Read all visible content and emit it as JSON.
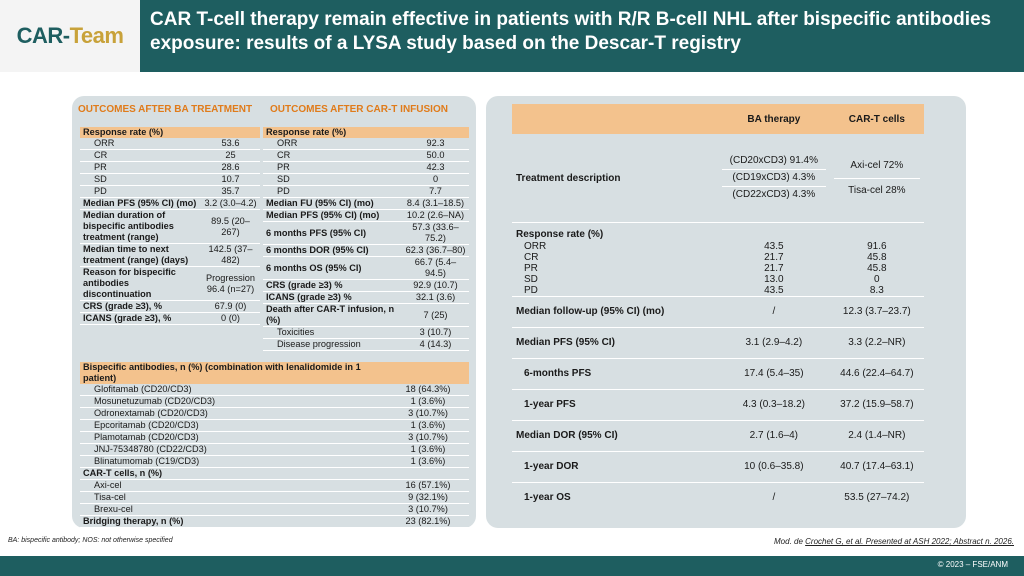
{
  "header": {
    "logo_main": "CAR-",
    "logo_accent": "Team",
    "title": "CAR T-cell therapy remain effective in patients with R/R B-cell NHL after bispecific antibodies exposure: results of a LYSA study based on the Descar-T registry"
  },
  "left": {
    "ba_title": "OUTCOMES AFTER BA TREATMENT",
    "cart_title": "OUTCOMES AFTER CAR-T INFUSION",
    "ba_rows": [
      {
        "label": "Response rate (%)",
        "value": "",
        "type": "header"
      },
      {
        "label": "ORR",
        "value": "53.6",
        "type": "sub"
      },
      {
        "label": "CR",
        "value": "25",
        "type": "sub"
      },
      {
        "label": "PR",
        "value": "28.6",
        "type": "sub"
      },
      {
        "label": "SD",
        "value": "10.7",
        "type": "sub"
      },
      {
        "label": "PD",
        "value": "35.7",
        "type": "sub"
      },
      {
        "label": "Median PFS (95% CI) (mo)",
        "value": "3.2 (3.0–4.2)",
        "type": "bold"
      },
      {
        "label": "Median duration of bispecific antibodies treatment (range)",
        "value": "89.5 (20–267)",
        "type": "bold"
      },
      {
        "label": "Median time to next treatment (range) (days)",
        "value": "142.5 (37–482)",
        "type": "bold"
      },
      {
        "label": "Reason for bispecific antibodies discontinuation",
        "value": "Progression 96.4 (n=27)",
        "type": "bold"
      },
      {
        "label": "CRS (grade ≥3), %",
        "value": "67.9 (0)",
        "type": "bold"
      },
      {
        "label": "ICANS (grade ≥3), %",
        "value": "0 (0)",
        "type": "bold"
      }
    ],
    "cart_rows": [
      {
        "label": "Response rate (%)",
        "value": "",
        "type": "header"
      },
      {
        "label": "ORR",
        "value": "92.3",
        "type": "sub"
      },
      {
        "label": "CR",
        "value": "50.0",
        "type": "sub"
      },
      {
        "label": "PR",
        "value": "42.3",
        "type": "sub"
      },
      {
        "label": "SD",
        "value": "0",
        "type": "sub"
      },
      {
        "label": "PD",
        "value": "7.7",
        "type": "sub"
      },
      {
        "label": "Median FU (95% CI) (mo)",
        "value": "8.4 (3.1–18.5)",
        "type": "bold"
      },
      {
        "label": "Median PFS (95% CI) (mo)",
        "value": "10.2 (2.6–NA)",
        "type": "bold"
      },
      {
        "label": "6 months PFS (95% CI)",
        "value": "57.3 (33.6–75.2)",
        "type": "bold"
      },
      {
        "label": "6 months DOR (95% CI)",
        "value": "62.3 (36.7–80)",
        "type": "bold"
      },
      {
        "label": "6 months OS (95% CI)",
        "value": "66.7 (5.4–94.5)",
        "type": "bold"
      },
      {
        "label": "CRS (grade ≥3) %",
        "value": "92.9 (10.7)",
        "type": "bold"
      },
      {
        "label": "ICANS (grade ≥3) %",
        "value": "32.1 (3.6)",
        "type": "bold"
      },
      {
        "label": "Death after CAR-T infusion, n (%)",
        "value": "7 (25)",
        "type": "bold"
      },
      {
        "label": "Toxicities",
        "value": "3 (10.7)",
        "type": "sub"
      },
      {
        "label": "Disease progression",
        "value": "4 (14.3)",
        "type": "sub"
      }
    ],
    "bottom_rows": [
      {
        "label": "Bispecific antibodies, n (%) (combination with lenalidomide in 1 patient)",
        "value": "",
        "type": "header"
      },
      {
        "label": "Glofitamab (CD20/CD3)",
        "value": "18 (64.3%)",
        "type": "sub"
      },
      {
        "label": "Mosunetuzumab (CD20/CD3)",
        "value": "1 (3.6%)",
        "type": "sub"
      },
      {
        "label": "Odronextamab (CD20/CD3)",
        "value": "3 (10.7%)",
        "type": "sub"
      },
      {
        "label": "Epcoritamab (CD20/CD3)",
        "value": "1 (3.6%)",
        "type": "sub"
      },
      {
        "label": "Plamotamab (CD20/CD3)",
        "value": "3 (10.7%)",
        "type": "sub"
      },
      {
        "label": "JNJ-75348780 (CD22/CD3)",
        "value": "1 (3.6%)",
        "type": "sub"
      },
      {
        "label": "Blinatumomab (C19/CD3)",
        "value": "1 (3.6%)",
        "type": "sub"
      },
      {
        "label": "CAR-T cells, n (%)",
        "value": "",
        "type": "bold"
      },
      {
        "label": "Axi-cel",
        "value": "16 (57.1%)",
        "type": "sub"
      },
      {
        "label": "Tisa-cel",
        "value": "9 (32.1%)",
        "type": "sub"
      },
      {
        "label": "Brexu-cel",
        "value": "3 (10.7%)",
        "type": "sub"
      },
      {
        "label": "Bridging therapy, n (%)",
        "value": "23 (82.1%)",
        "type": "bold"
      }
    ]
  },
  "right": {
    "col_ba": "BA therapy",
    "col_cart": "CAR-T cells",
    "treatment_label": "Treatment description",
    "treatment_ba": [
      "(CD20xCD3) 91.4%",
      "(CD19xCD3) 4.3%",
      "(CD22xCD3) 4.3%"
    ],
    "treatment_cart": [
      "Axi-cel 72%",
      "Tisa-cel 28%"
    ],
    "response_label": "Response rate (%)",
    "response_rows": [
      {
        "label": "ORR",
        "ba": "43.5",
        "cart": "91.6"
      },
      {
        "label": "CR",
        "ba": "21.7",
        "cart": "45.8"
      },
      {
        "label": "PR",
        "ba": "21.7",
        "cart": "45.8"
      },
      {
        "label": "SD",
        "ba": "13.0",
        "cart": "0"
      },
      {
        "label": "PD",
        "ba": "43.5",
        "cart": "8.3"
      }
    ],
    "stat_rows": [
      {
        "label": "Median follow-up (95% CI) (mo)",
        "ba": "/",
        "cart": "12.3 (3.7–23.7)",
        "indent": false
      },
      {
        "label": "Median PFS (95% CI)",
        "ba": "3.1 (2.9–4.2)",
        "cart": "3.3 (2.2–NR)",
        "indent": false
      },
      {
        "label": "6-months PFS",
        "ba": "17.4 (5.4–35)",
        "cart": "44.6 (22.4–64.7)",
        "indent": true
      },
      {
        "label": "1-year PFS",
        "ba": "4.3 (0.3–18.2)",
        "cart": "37.2 (15.9–58.7)",
        "indent": true
      },
      {
        "label": "Median DOR (95% CI)",
        "ba": "2.7 (1.6–4)",
        "cart": "2.4 (1.4–NR)",
        "indent": false
      },
      {
        "label": "1-year DOR",
        "ba": "10 (0.6–35.8)",
        "cart": "40.7 (17.4–63.1)",
        "indent": true
      },
      {
        "label": "1-year OS",
        "ba": "/",
        "cart": "53.5 (27–74.2)",
        "indent": true
      }
    ]
  },
  "footer": {
    "abbrev": "BA: bispecific antibody; NOS: not otherwise specified",
    "source_prefix": "Mod. de ",
    "source_link": "Crochet G, et al. Presented at ASH 2022; Abstract n. 2026.",
    "copyright": "© 2023 – FSE/ANM"
  }
}
